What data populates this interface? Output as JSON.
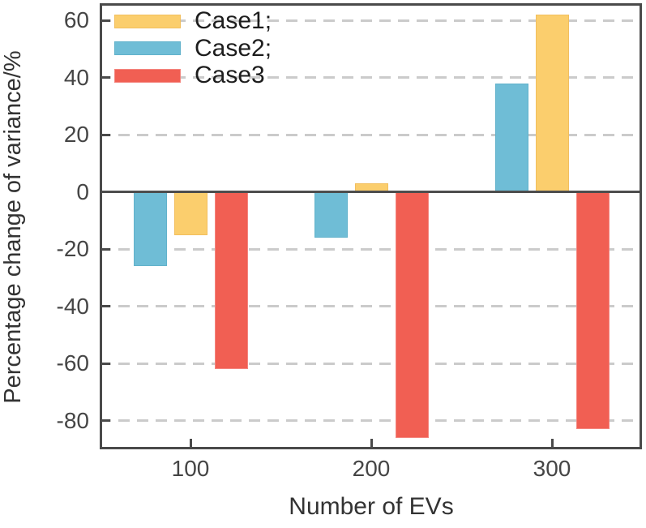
{
  "chart_data": {
    "type": "bar",
    "title": "",
    "xlabel": "Number of EVs",
    "ylabel": "Percentage change of variance/%",
    "categories": [
      "100",
      "200",
      "300"
    ],
    "series": [
      {
        "key": "Case1",
        "label": "Case1;",
        "color": "#FBCE6D",
        "edge": "#F2BF5E",
        "values": [
          -15,
          3,
          62
        ]
      },
      {
        "key": "Case2",
        "label": "Case2;",
        "color": "#6FBDD6",
        "edge": "#61B2CB",
        "values": [
          -26,
          -16,
          38
        ]
      },
      {
        "key": "Case3",
        "label": "Case3",
        "color": "#F15F53",
        "edge": "#F4867F",
        "values": [
          -62,
          -86,
          -83
        ]
      }
    ],
    "bar_order": [
      "Case2",
      "Case1",
      "Case3"
    ],
    "ylim": [
      -90,
      66
    ],
    "yticks": [
      60,
      40,
      20,
      0,
      -20,
      -40,
      -60,
      -80
    ],
    "grid": "horizontal dashed at yticks (solid dark line at 0)",
    "legend_position": "upper-left",
    "axis_color": "#4a4a4a",
    "gridline_color": "#cbcbcb"
  }
}
